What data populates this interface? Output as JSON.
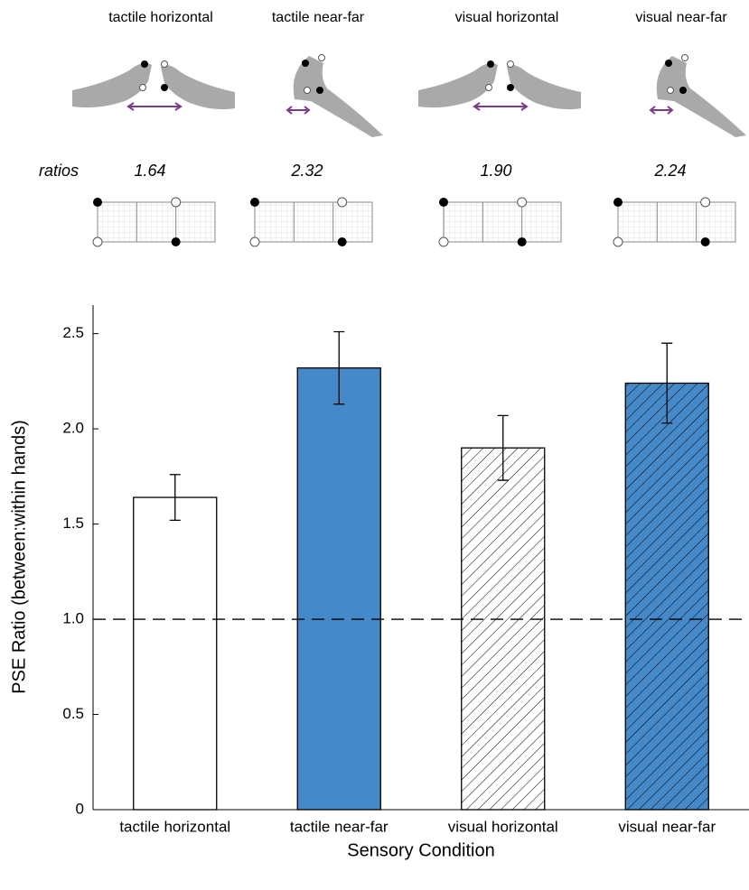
{
  "header": {
    "conditions": [
      "tactile horizontal",
      "tactile near-far",
      "visual horizontal",
      "visual near-far"
    ],
    "ratios_label": "ratios",
    "ratios": [
      "1.64",
      "2.32",
      "1.90",
      "2.24"
    ]
  },
  "chart_data": {
    "type": "bar",
    "categories": [
      "tactile horizontal",
      "tactile near-far",
      "visual horizontal",
      "visual near-far"
    ],
    "values": [
      1.64,
      2.32,
      1.9,
      2.24
    ],
    "errors": [
      0.12,
      0.19,
      0.17,
      0.21
    ],
    "colors": [
      "#ffffff",
      "#4689c8",
      "#ffffff",
      "#4689c8"
    ],
    "hatch": [
      false,
      false,
      true,
      true
    ],
    "hline": 1,
    "xlabel": "Sensory Condition",
    "ylabel": "PSE Ratio (between:within hands)",
    "ylim": [
      0,
      2.65
    ],
    "yticks": [
      {
        "value": 0,
        "label": "0"
      },
      0.5,
      {
        "value": 1,
        "label": "1.0"
      },
      1.5,
      {
        "value": 2,
        "label": "2.0"
      },
      2.5
    ]
  }
}
